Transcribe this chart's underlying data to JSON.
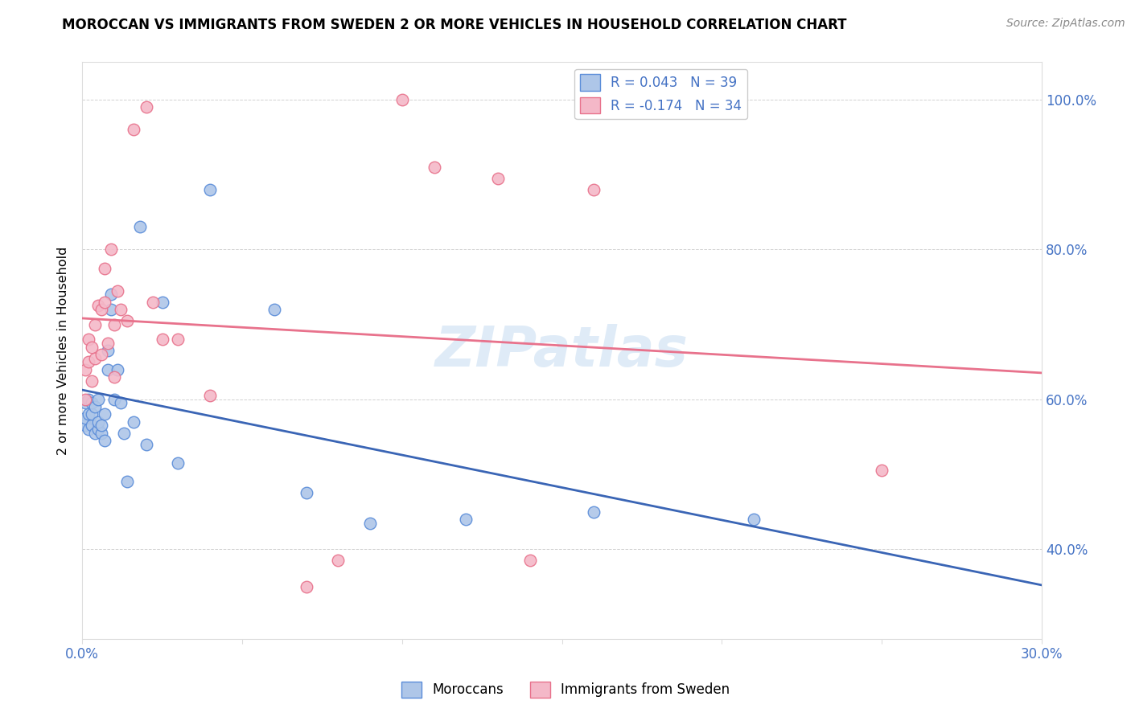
{
  "title": "MOROCCAN VS IMMIGRANTS FROM SWEDEN 2 OR MORE VEHICLES IN HOUSEHOLD CORRELATION CHART",
  "source": "Source: ZipAtlas.com",
  "ylabel": "2 or more Vehicles in Household",
  "xlim": [
    0.0,
    0.3
  ],
  "ylim": [
    0.28,
    1.05
  ],
  "x_ticks": [
    0.0,
    0.05,
    0.1,
    0.15,
    0.2,
    0.25,
    0.3
  ],
  "x_tick_labels": [
    "0.0%",
    "",
    "",
    "",
    "",
    "",
    "30.0%"
  ],
  "y_ticks": [
    0.4,
    0.6,
    0.8,
    1.0
  ],
  "y_tick_labels": [
    "40.0%",
    "60.0%",
    "80.0%",
    "100.0%"
  ],
  "moroccan_color": "#aec6e8",
  "sweden_color": "#f4b8c8",
  "moroccan_edge_color": "#5b8dd9",
  "sweden_edge_color": "#e8728c",
  "moroccan_line_color": "#3a65b5",
  "sweden_line_color": "#e8728c",
  "moroccan_R": 0.043,
  "moroccan_N": 39,
  "sweden_R": -0.174,
  "sweden_N": 34,
  "legend_label_moroccan": "Moroccans",
  "legend_label_sweden": "Immigrants from Sweden",
  "watermark": "ZIPatlas",
  "moroccan_x": [
    0.001,
    0.001,
    0.001,
    0.002,
    0.002,
    0.002,
    0.003,
    0.003,
    0.003,
    0.004,
    0.004,
    0.005,
    0.005,
    0.005,
    0.006,
    0.006,
    0.007,
    0.007,
    0.008,
    0.008,
    0.009,
    0.009,
    0.01,
    0.011,
    0.012,
    0.013,
    0.014,
    0.016,
    0.018,
    0.02,
    0.025,
    0.03,
    0.04,
    0.06,
    0.07,
    0.09,
    0.12,
    0.16,
    0.21
  ],
  "moroccan_y": [
    0.565,
    0.575,
    0.595,
    0.56,
    0.58,
    0.6,
    0.565,
    0.58,
    0.595,
    0.555,
    0.59,
    0.56,
    0.57,
    0.6,
    0.555,
    0.565,
    0.545,
    0.58,
    0.64,
    0.665,
    0.72,
    0.74,
    0.6,
    0.64,
    0.595,
    0.555,
    0.49,
    0.57,
    0.83,
    0.54,
    0.73,
    0.515,
    0.88,
    0.72,
    0.475,
    0.435,
    0.44,
    0.45,
    0.44
  ],
  "sweden_x": [
    0.001,
    0.001,
    0.002,
    0.002,
    0.003,
    0.003,
    0.004,
    0.004,
    0.005,
    0.006,
    0.006,
    0.007,
    0.007,
    0.008,
    0.009,
    0.01,
    0.01,
    0.011,
    0.012,
    0.014,
    0.016,
    0.02,
    0.022,
    0.025,
    0.03,
    0.04,
    0.07,
    0.08,
    0.1,
    0.11,
    0.13,
    0.14,
    0.16,
    0.25
  ],
  "sweden_y": [
    0.6,
    0.64,
    0.65,
    0.68,
    0.625,
    0.67,
    0.655,
    0.7,
    0.725,
    0.66,
    0.72,
    0.73,
    0.775,
    0.675,
    0.8,
    0.63,
    0.7,
    0.745,
    0.72,
    0.705,
    0.96,
    0.99,
    0.73,
    0.68,
    0.68,
    0.605,
    0.35,
    0.385,
    1.0,
    0.91,
    0.895,
    0.385,
    0.88,
    0.505
  ]
}
